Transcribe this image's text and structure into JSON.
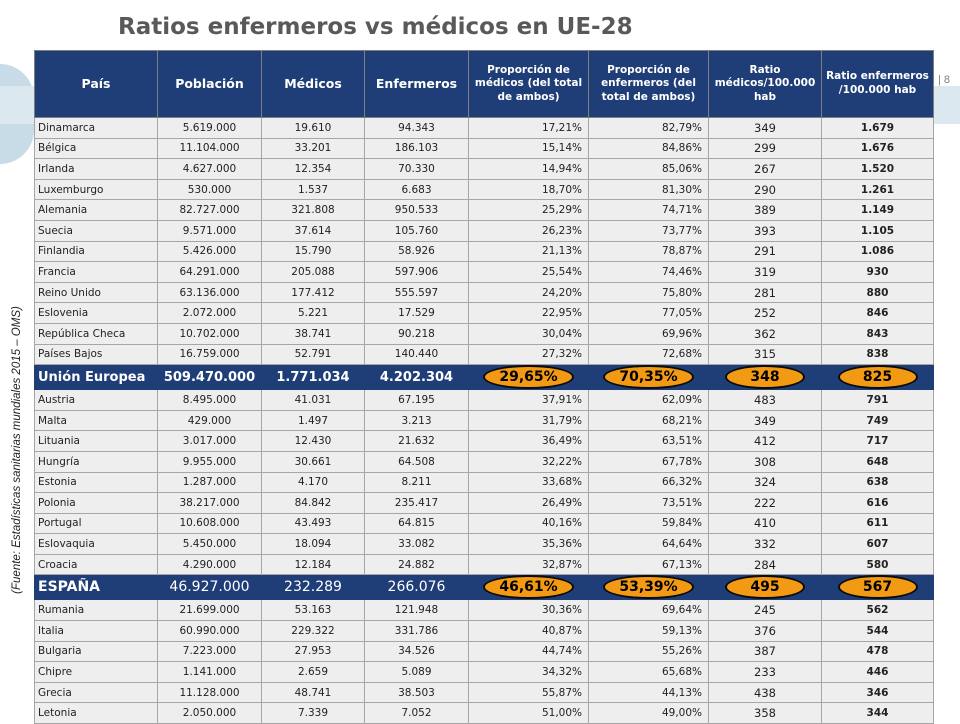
{
  "title": "Ratios enfermeros vs médicos en UE-28",
  "side_source": "(Fuente: Estadísticas sanitarias mundiales 2015 – OMS)",
  "page_num": "| 8",
  "headers": [
    "País",
    "Población",
    "Médicos",
    "Enfermeros",
    "Proporción de médicos (del total de ambos)",
    "Proporción de enfermeros (del total de ambos)",
    "Ratio médicos/100.000 hab",
    "Ratio enfermeros /100.000 hab"
  ],
  "rows": [
    {
      "pais": "Dinamarca",
      "poblacion": "5.619.000",
      "medicos": "19.610",
      "enfermeros": "94.343",
      "prop_med": "17,21%",
      "prop_enf": "82,79%",
      "ratio_med": "349",
      "ratio_enf": "1.679"
    },
    {
      "pais": "Bélgica",
      "poblacion": "11.104.000",
      "medicos": "33.201",
      "enfermeros": "186.103",
      "prop_med": "15,14%",
      "prop_enf": "84,86%",
      "ratio_med": "299",
      "ratio_enf": "1.676"
    },
    {
      "pais": "Irlanda",
      "poblacion": "4.627.000",
      "medicos": "12.354",
      "enfermeros": "70.330",
      "prop_med": "14,94%",
      "prop_enf": "85,06%",
      "ratio_med": "267",
      "ratio_enf": "1.520"
    },
    {
      "pais": "Luxemburgo",
      "poblacion": "530.000",
      "medicos": "1.537",
      "enfermeros": "6.683",
      "prop_med": "18,70%",
      "prop_enf": "81,30%",
      "ratio_med": "290",
      "ratio_enf": "1.261"
    },
    {
      "pais": "Alemania",
      "poblacion": "82.727.000",
      "medicos": "321.808",
      "enfermeros": "950.533",
      "prop_med": "25,29%",
      "prop_enf": "74,71%",
      "ratio_med": "389",
      "ratio_enf": "1.149"
    },
    {
      "pais": "Suecia",
      "poblacion": "9.571.000",
      "medicos": "37.614",
      "enfermeros": "105.760",
      "prop_med": "26,23%",
      "prop_enf": "73,77%",
      "ratio_med": "393",
      "ratio_enf": "1.105"
    },
    {
      "pais": "Finlandia",
      "poblacion": "5.426.000",
      "medicos": "15.790",
      "enfermeros": "58.926",
      "prop_med": "21,13%",
      "prop_enf": "78,87%",
      "ratio_med": "291",
      "ratio_enf": "1.086"
    },
    {
      "pais": "Francia",
      "poblacion": "64.291.000",
      "medicos": "205.088",
      "enfermeros": "597.906",
      "prop_med": "25,54%",
      "prop_enf": "74,46%",
      "ratio_med": "319",
      "ratio_enf": "930"
    },
    {
      "pais": "Reino Unido",
      "poblacion": "63.136.000",
      "medicos": "177.412",
      "enfermeros": "555.597",
      "prop_med": "24,20%",
      "prop_enf": "75,80%",
      "ratio_med": "281",
      "ratio_enf": "880"
    },
    {
      "pais": "Eslovenia",
      "poblacion": "2.072.000",
      "medicos": "5.221",
      "enfermeros": "17.529",
      "prop_med": "22,95%",
      "prop_enf": "77,05%",
      "ratio_med": "252",
      "ratio_enf": "846"
    },
    {
      "pais": "República Checa",
      "poblacion": "10.702.000",
      "medicos": "38.741",
      "enfermeros": "90.218",
      "prop_med": "30,04%",
      "prop_enf": "69,96%",
      "ratio_med": "362",
      "ratio_enf": "843"
    },
    {
      "pais": "Países Bajos",
      "poblacion": "16.759.000",
      "medicos": "52.791",
      "enfermeros": "140.440",
      "prop_med": "27,32%",
      "prop_enf": "72,68%",
      "ratio_med": "315",
      "ratio_enf": "838"
    },
    {
      "highlight": true,
      "pais": "Unión Europea",
      "poblacion": "509.470.000",
      "medicos": "1.771.034",
      "enfermeros": "4.202.304",
      "prop_med": "29,65%",
      "prop_enf": "70,35%",
      "ratio_med": "348",
      "ratio_enf": "825"
    },
    {
      "pais": "Austria",
      "poblacion": "8.495.000",
      "medicos": "41.031",
      "enfermeros": "67.195",
      "prop_med": "37,91%",
      "prop_enf": "62,09%",
      "ratio_med": "483",
      "ratio_enf": "791"
    },
    {
      "pais": "Malta",
      "poblacion": "429.000",
      "medicos": "1.497",
      "enfermeros": "3.213",
      "prop_med": "31,79%",
      "prop_enf": "68,21%",
      "ratio_med": "349",
      "ratio_enf": "749"
    },
    {
      "pais": "Lituania",
      "poblacion": "3.017.000",
      "medicos": "12.430",
      "enfermeros": "21.632",
      "prop_med": "36,49%",
      "prop_enf": "63,51%",
      "ratio_med": "412",
      "ratio_enf": "717"
    },
    {
      "pais": "Hungría",
      "poblacion": "9.955.000",
      "medicos": "30.661",
      "enfermeros": "64.508",
      "prop_med": "32,22%",
      "prop_enf": "67,78%",
      "ratio_med": "308",
      "ratio_enf": "648"
    },
    {
      "pais": "Estonia",
      "poblacion": "1.287.000",
      "medicos": "4.170",
      "enfermeros": "8.211",
      "prop_med": "33,68%",
      "prop_enf": "66,32%",
      "ratio_med": "324",
      "ratio_enf": "638"
    },
    {
      "pais": "Polonia",
      "poblacion": "38.217.000",
      "medicos": "84.842",
      "enfermeros": "235.417",
      "prop_med": "26,49%",
      "prop_enf": "73,51%",
      "ratio_med": "222",
      "ratio_enf": "616"
    },
    {
      "pais": "Portugal",
      "poblacion": "10.608.000",
      "medicos": "43.493",
      "enfermeros": "64.815",
      "prop_med": "40,16%",
      "prop_enf": "59,84%",
      "ratio_med": "410",
      "ratio_enf": "611"
    },
    {
      "pais": "Eslovaquia",
      "poblacion": "5.450.000",
      "medicos": "18.094",
      "enfermeros": "33.082",
      "prop_med": "35,36%",
      "prop_enf": "64,64%",
      "ratio_med": "332",
      "ratio_enf": "607"
    },
    {
      "pais": "Croacia",
      "poblacion": "4.290.000",
      "medicos": "12.184",
      "enfermeros": "24.882",
      "prop_med": "32,87%",
      "prop_enf": "67,13%",
      "ratio_med": "284",
      "ratio_enf": "580"
    },
    {
      "highlight": true,
      "spain": true,
      "pais": "ESPAÑA",
      "poblacion": "46.927.000",
      "medicos": "232.289",
      "enfermeros": "266.076",
      "prop_med": "46,61%",
      "prop_enf": "53,39%",
      "ratio_med": "495",
      "ratio_enf": "567"
    },
    {
      "pais": "Rumania",
      "poblacion": "21.699.000",
      "medicos": "53.163",
      "enfermeros": "121.948",
      "prop_med": "30,36%",
      "prop_enf": "69,64%",
      "ratio_med": "245",
      "ratio_enf": "562"
    },
    {
      "pais": "Italia",
      "poblacion": "60.990.000",
      "medicos": "229.322",
      "enfermeros": "331.786",
      "prop_med": "40,87%",
      "prop_enf": "59,13%",
      "ratio_med": "376",
      "ratio_enf": "544"
    },
    {
      "pais": "Bulgaria",
      "poblacion": "7.223.000",
      "medicos": "27.953",
      "enfermeros": "34.526",
      "prop_med": "44,74%",
      "prop_enf": "55,26%",
      "ratio_med": "387",
      "ratio_enf": "478"
    },
    {
      "pais": "Chipre",
      "poblacion": "1.141.000",
      "medicos": "2.659",
      "enfermeros": "5.089",
      "prop_med": "34,32%",
      "prop_enf": "65,68%",
      "ratio_med": "233",
      "ratio_enf": "446"
    },
    {
      "pais": "Grecia",
      "poblacion": "11.128.000",
      "medicos": "48.741",
      "enfermeros": "38.503",
      "prop_med": "55,87%",
      "prop_enf": "44,13%",
      "ratio_med": "438",
      "ratio_enf": "346"
    },
    {
      "pais": "Letonia",
      "poblacion": "2.050.000",
      "medicos": "7.339",
      "enfermeros": "7.052",
      "prop_med": "51,00%",
      "prop_enf": "49,00%",
      "ratio_med": "358",
      "ratio_enf": "344"
    }
  ]
}
